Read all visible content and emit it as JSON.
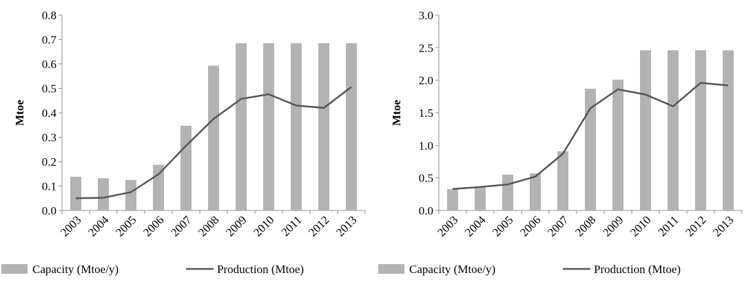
{
  "chart_data": [
    {
      "type": "bar",
      "categories": [
        "2003",
        "2004",
        "2005",
        "2006",
        "2007",
        "2008",
        "2009",
        "2010",
        "2011",
        "2012",
        "2013"
      ],
      "series": [
        {
          "name": "Capacity (Mtoe/y)",
          "type": "bar",
          "color": "#b3b3b3",
          "values": [
            0.138,
            0.132,
            0.125,
            0.187,
            0.347,
            0.593,
            0.685,
            0.685,
            0.685,
            0.685,
            0.685
          ]
        },
        {
          "name": "Production (Mtoe)",
          "type": "line",
          "color": "#555555",
          "values": [
            0.05,
            0.052,
            0.075,
            0.148,
            0.265,
            0.375,
            0.457,
            0.476,
            0.43,
            0.42,
            0.506
          ]
        }
      ],
      "yticks": [
        "0.0",
        "0.1",
        "0.2",
        "0.3",
        "0.4",
        "0.5",
        "0.6",
        "0.7",
        "0.8"
      ],
      "ylabel": "Mtoe",
      "xlabel": "",
      "ylim": [
        0,
        0.8
      ],
      "legend": "bottom",
      "grid": false
    },
    {
      "type": "bar",
      "categories": [
        "2003",
        "2004",
        "2005",
        "2006",
        "2007",
        "2008",
        "2009",
        "2010",
        "2011",
        "2012",
        "2013"
      ],
      "series": [
        {
          "name": "Capacity (Mtoe/y)",
          "type": "bar",
          "color": "#b3b3b3",
          "values": [
            0.33,
            0.35,
            0.55,
            0.57,
            0.91,
            1.87,
            2.01,
            2.46,
            2.46,
            2.46,
            2.46
          ]
        },
        {
          "name": "Production (Mtoe)",
          "type": "line",
          "color": "#555555",
          "values": [
            0.33,
            0.36,
            0.4,
            0.52,
            0.87,
            1.57,
            1.86,
            1.78,
            1.6,
            1.96,
            1.92
          ]
        }
      ],
      "yticks": [
        "0.0",
        "0.5",
        "1.0",
        "1.5",
        "2.0",
        "2.5",
        "3.0"
      ],
      "ylabel": "Mtoe",
      "xlabel": "",
      "ylim": [
        0,
        3.0
      ],
      "legend": "bottom",
      "grid": false
    }
  ]
}
